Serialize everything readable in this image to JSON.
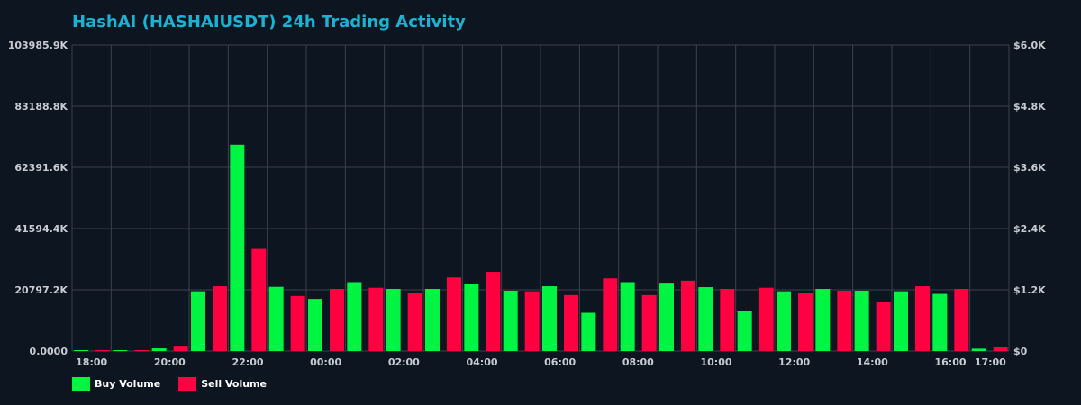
{
  "chart_data": {
    "type": "bar",
    "title": "HashAI (HASHAIUSDT) 24h Trading Activity",
    "x_tick_labels": [
      "18:00",
      "20:00",
      "22:00",
      "00:00",
      "02:00",
      "04:00",
      "06:00",
      "08:00",
      "10:00",
      "12:00",
      "14:00",
      "16:00",
      "17:00"
    ],
    "y_left_ticks": [
      "0.0000",
      "20797.2K",
      "41594.4K",
      "62391.6K",
      "83188.8K",
      "103985.9K"
    ],
    "y_right_ticks": [
      "$0",
      "$1.2K",
      "$2.4K",
      "$3.6K",
      "$4.8K",
      "$6.0K"
    ],
    "ylim": [
      0,
      103985.9
    ],
    "y_unit": "K",
    "categories": [
      "18:00",
      "19:00",
      "20:00",
      "21:00",
      "22:00",
      "23:00",
      "00:00",
      "01:00",
      "02:00",
      "03:00",
      "04:00",
      "05:00",
      "06:00",
      "07:00",
      "08:00",
      "09:00",
      "10:00",
      "11:00",
      "12:00",
      "13:00",
      "14:00",
      "15:00",
      "16:00",
      "17:00"
    ],
    "series": [
      {
        "name": "Buy Volume",
        "color": "#00f542",
        "values": [
          180,
          180,
          900,
          20300,
          70100,
          21800,
          17700,
          23400,
          21100,
          21100,
          22800,
          20500,
          22000,
          13000,
          23400,
          23200,
          21700,
          13600,
          20300,
          21100,
          20500,
          20300,
          19400,
          800
        ]
      },
      {
        "name": "Sell Volume",
        "color": "#ff0040",
        "values": [
          180,
          180,
          1800,
          22000,
          34700,
          18700,
          21100,
          21500,
          19800,
          25000,
          26900,
          20300,
          19000,
          24700,
          19000,
          23900,
          21100,
          21500,
          19800,
          20500,
          16800,
          22000,
          21100,
          1200
        ]
      }
    ],
    "grid": true,
    "legend_position": "bottom-left"
  }
}
